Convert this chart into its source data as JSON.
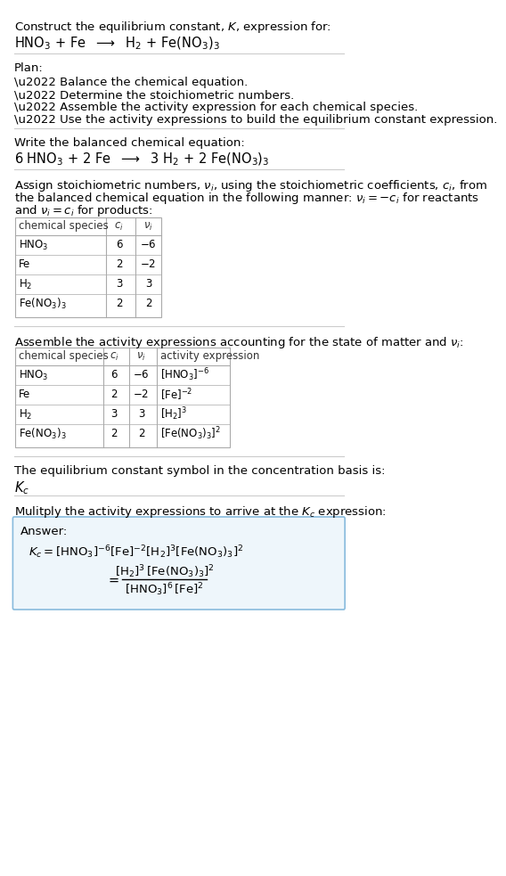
{
  "bg_color": "#ffffff",
  "text_color": "#000000",
  "gray_text": "#555555",
  "table_border": "#aaaaaa",
  "answer_box_border": "#88bbdd",
  "answer_box_bg": "#eef6fb",
  "section1_title": "Construct the equilibrium constant, $K$, expression for:",
  "section1_reaction": "HNO$_3$ + Fe  $\\longrightarrow$  H$_2$ + Fe(NO$_3$)$_3$",
  "section2_title": "Plan:",
  "section2_bullets": [
    "\\u2022 Balance the chemical equation.",
    "\\u2022 Determine the stoichiometric numbers.",
    "\\u2022 Assemble the activity expression for each chemical species.",
    "\\u2022 Use the activity expressions to build the equilibrium constant expression."
  ],
  "section3_title": "Write the balanced chemical equation:",
  "section3_equation": "6 HNO$_3$ + 2 Fe  $\\longrightarrow$  3 H$_2$ + 2 Fe(NO$_3$)$_3$",
  "section4_intro": "Assign stoichiometric numbers, $\\nu_i$, using the stoichiometric coefficients, $c_i$, from\nthe balanced chemical equation in the following manner: $\\nu_i = -c_i$ for reactants\nand $\\nu_i = c_i$ for products:",
  "table1_headers": [
    "chemical species",
    "$c_i$",
    "$\\nu_i$"
  ],
  "table1_rows": [
    [
      "HNO$_3$",
      "6",
      "$-6$"
    ],
    [
      "Fe",
      "2",
      "$-2$"
    ],
    [
      "H$_2$",
      "3",
      "3"
    ],
    [
      "Fe(NO$_3$)$_3$",
      "2",
      "2"
    ]
  ],
  "section5_intro": "Assemble the activity expressions accounting for the state of matter and $\\nu_i$:",
  "table2_headers": [
    "chemical species",
    "$c_i$",
    "$\\nu_i$",
    "activity expression"
  ],
  "table2_rows": [
    [
      "HNO$_3$",
      "6",
      "$-6$",
      "[HNO$_3$]$^{-6}$"
    ],
    [
      "Fe",
      "2",
      "$-2$",
      "[Fe]$^{-2}$"
    ],
    [
      "H$_2$",
      "3",
      "3",
      "[H$_2$]$^3$"
    ],
    [
      "Fe(NO$_3$)$_3$",
      "2",
      "2",
      "[Fe(NO$_3$)$_3$]$^2$"
    ]
  ],
  "section6_text": "The equilibrium constant symbol in the concentration basis is:",
  "section6_symbol": "$K_c$",
  "section7_text": "Mulitply the activity expressions to arrive at the $K_c$ expression:",
  "answer_label": "Answer:",
  "answer_line1": "$K_c = [\\mathrm{HNO_3}]^{-6}\\,[\\mathrm{Fe}]^{-2}\\,[\\mathrm{H_2}]^3\\,[\\mathrm{Fe(NO_3)_3}]^2$",
  "answer_equals": "$= $",
  "answer_numerator": "$[\\mathrm{H_2}]^3\\,[\\mathrm{Fe(NO_3)_3}]^2$",
  "answer_denominator": "$[\\mathrm{HNO_3}]^6\\,[\\mathrm{Fe}]^2$"
}
